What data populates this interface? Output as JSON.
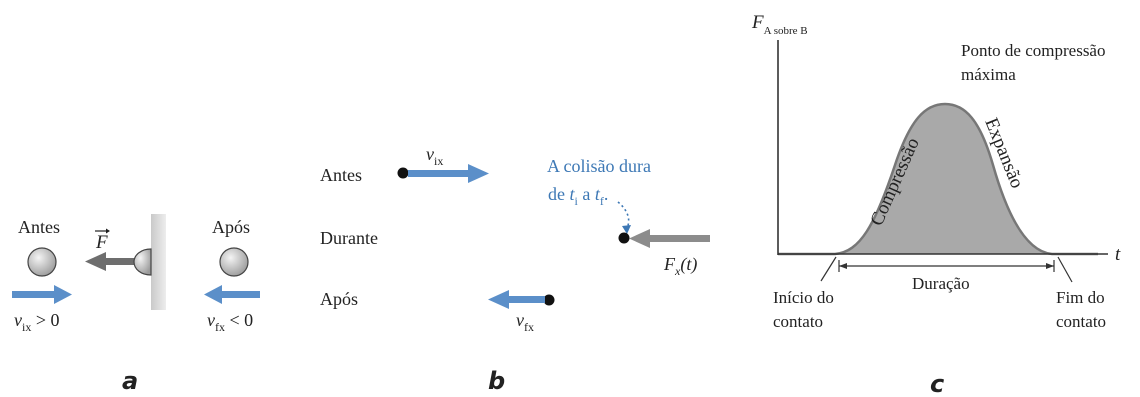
{
  "colors": {
    "arrow_blue": "#5b8fc9",
    "text_blue": "#3d78b5",
    "arrow_gray": "#6e6e6e",
    "fill_gray": "#a9a9a9",
    "ball_gray": "#c8c8c8",
    "wall_gray": "#d9d9d9"
  },
  "panel_a": {
    "caption": "a",
    "label_before": "Antes",
    "label_after": "Após",
    "force_symbol": "F",
    "v_before_sym": "v",
    "v_before_sub": "ix",
    "v_before_rel": " > 0",
    "v_after_sym": "v",
    "v_after_sub": "fx",
    "v_after_rel": " < 0"
  },
  "panel_b": {
    "caption": "b",
    "row_before": "Antes",
    "row_during": "Durante",
    "row_after": "Após",
    "v_i_sym": "v",
    "v_i_sub": "ix",
    "v_f_sym": "v",
    "v_f_sub": "fx",
    "note_line1": "A colisão dura",
    "note_de": "de ",
    "note_ti": "t",
    "note_ti_sub": "i",
    "note_a": " a ",
    "note_tf": "t",
    "note_tf_sub": "f",
    "note_period": ".",
    "force_sym": "F",
    "force_sub": "x",
    "force_arg": "(t)"
  },
  "panel_c": {
    "caption": "c",
    "y_label_sym": "F",
    "y_label_sub": "A sobre B",
    "x_label": "t",
    "peak_line1": "Ponto de compressão",
    "peak_line2": "máxima",
    "compression": "Compressão",
    "expansion": "Expansão",
    "duration": "Duração",
    "start_line1": "Início do",
    "start_line2": "contato",
    "end_line1": "Fim do",
    "end_line2": "contato"
  }
}
